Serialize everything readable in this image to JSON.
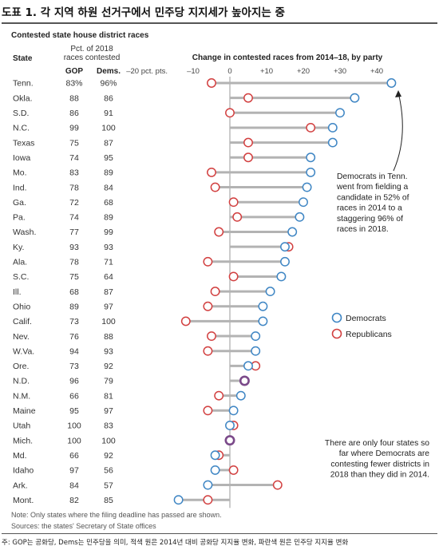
{
  "figure_title": "도표 1. 각 지역 하원 선거구에서 민주당 지지세가 높아지는 중",
  "footer_note": "주: GOP는 공화당, Dems는 민주당을 의미, 적색 원은 2014년 대비 공화당 지지율 변화, 파란색 원은 민주당 지지율 변화",
  "chart_data": {
    "type": "scatter",
    "title": "Contested state house district races",
    "table_headers": {
      "state": "State",
      "pct_line1": "Pct. of 2018",
      "pct_line2": "races contested",
      "gop": "GOP",
      "dems": "Dems."
    },
    "chart_header": "Change in contested races from 2014–18, by party",
    "tick_labels": [
      "–20 pct. pts.",
      "–10",
      "0",
      "+10",
      "+20",
      "+30",
      "+40"
    ],
    "x_ticks": [
      -20,
      -10,
      0,
      10,
      20,
      30,
      40
    ],
    "xlim": [
      -22,
      46
    ],
    "grid": false,
    "legend_placement": "right",
    "legend": [
      "Democrats",
      "Republicans"
    ],
    "colors": {
      "democrats": "#3f86c4",
      "republicans": "#d24040",
      "overlap": "#7b4a8a",
      "line": "#b3b3b3",
      "axis": "#9a9a9a"
    },
    "states": [
      {
        "state": "Tenn.",
        "gop": "83%",
        "dems": "96%",
        "dem_change": 44,
        "rep_change": -5
      },
      {
        "state": "Okla.",
        "gop": "88",
        "dems": "86",
        "dem_change": 34,
        "rep_change": 5
      },
      {
        "state": "S.D.",
        "gop": "86",
        "dems": "91",
        "dem_change": 30,
        "rep_change": 0
      },
      {
        "state": "N.C.",
        "gop": "99",
        "dems": "100",
        "dem_change": 28,
        "rep_change": 22
      },
      {
        "state": "Texas",
        "gop": "75",
        "dems": "87",
        "dem_change": 28,
        "rep_change": 5
      },
      {
        "state": "Iowa",
        "gop": "74",
        "dems": "95",
        "dem_change": 22,
        "rep_change": 5
      },
      {
        "state": "Mo.",
        "gop": "83",
        "dems": "89",
        "dem_change": 22,
        "rep_change": -5
      },
      {
        "state": "Ind.",
        "gop": "78",
        "dems": "84",
        "dem_change": 21,
        "rep_change": -4
      },
      {
        "state": "Ga.",
        "gop": "72",
        "dems": "68",
        "dem_change": 20,
        "rep_change": 1
      },
      {
        "state": "Pa.",
        "gop": "74",
        "dems": "89",
        "dem_change": 19,
        "rep_change": 2
      },
      {
        "state": "Wash.",
        "gop": "77",
        "dems": "99",
        "dem_change": 17,
        "rep_change": -3
      },
      {
        "state": "Ky.",
        "gop": "93",
        "dems": "93",
        "dem_change": 15,
        "rep_change": 16
      },
      {
        "state": "Ala.",
        "gop": "78",
        "dems": "71",
        "dem_change": 15,
        "rep_change": -6
      },
      {
        "state": "S.C.",
        "gop": "75",
        "dems": "64",
        "dem_change": 14,
        "rep_change": 1
      },
      {
        "state": "Ill.",
        "gop": "68",
        "dems": "87",
        "dem_change": 11,
        "rep_change": -4
      },
      {
        "state": "Ohio",
        "gop": "89",
        "dems": "97",
        "dem_change": 9,
        "rep_change": -6
      },
      {
        "state": "Calif.",
        "gop": "73",
        "dems": "100",
        "dem_change": 9,
        "rep_change": -12
      },
      {
        "state": "Nev.",
        "gop": "76",
        "dems": "88",
        "dem_change": 7,
        "rep_change": -5
      },
      {
        "state": "W.Va.",
        "gop": "94",
        "dems": "93",
        "dem_change": 7,
        "rep_change": -6
      },
      {
        "state": "Ore.",
        "gop": "73",
        "dems": "92",
        "dem_change": 5,
        "rep_change": 7
      },
      {
        "state": "N.D.",
        "gop": "96",
        "dems": "79",
        "dem_change": 4,
        "rep_change": 4
      },
      {
        "state": "N.M.",
        "gop": "66",
        "dems": "81",
        "dem_change": 3,
        "rep_change": -3
      },
      {
        "state": "Maine",
        "gop": "95",
        "dems": "97",
        "dem_change": 1,
        "rep_change": -6
      },
      {
        "state": "Utah",
        "gop": "100",
        "dems": "83",
        "dem_change": 0,
        "rep_change": 1
      },
      {
        "state": "Mich.",
        "gop": "100",
        "dems": "100",
        "dem_change": 0,
        "rep_change": 0
      },
      {
        "state": "Md.",
        "gop": "66",
        "dems": "92",
        "dem_change": -4,
        "rep_change": -3
      },
      {
        "state": "Idaho",
        "gop": "97",
        "dems": "56",
        "dem_change": -4,
        "rep_change": 1
      },
      {
        "state": "Ark.",
        "gop": "84",
        "dems": "57",
        "dem_change": -6,
        "rep_change": 13
      },
      {
        "state": "Mont.",
        "gop": "82",
        "dems": "85",
        "dem_change": -14,
        "rep_change": -6
      }
    ],
    "annotations": [
      [
        "Democrats in Tenn.",
        "went from fielding a",
        "candidate in 52% of",
        "races in 2014 to a",
        "staggering 96% of",
        "races in 2018."
      ],
      [
        "There are only four states so",
        "far where Democrats are",
        "contesting fewer districts in",
        "2018 than they did in 2014."
      ]
    ],
    "notes": [
      "Note: Only states where the filing deadline has passed are shown.",
      "Sources: the states' Secretary of State offices"
    ]
  }
}
